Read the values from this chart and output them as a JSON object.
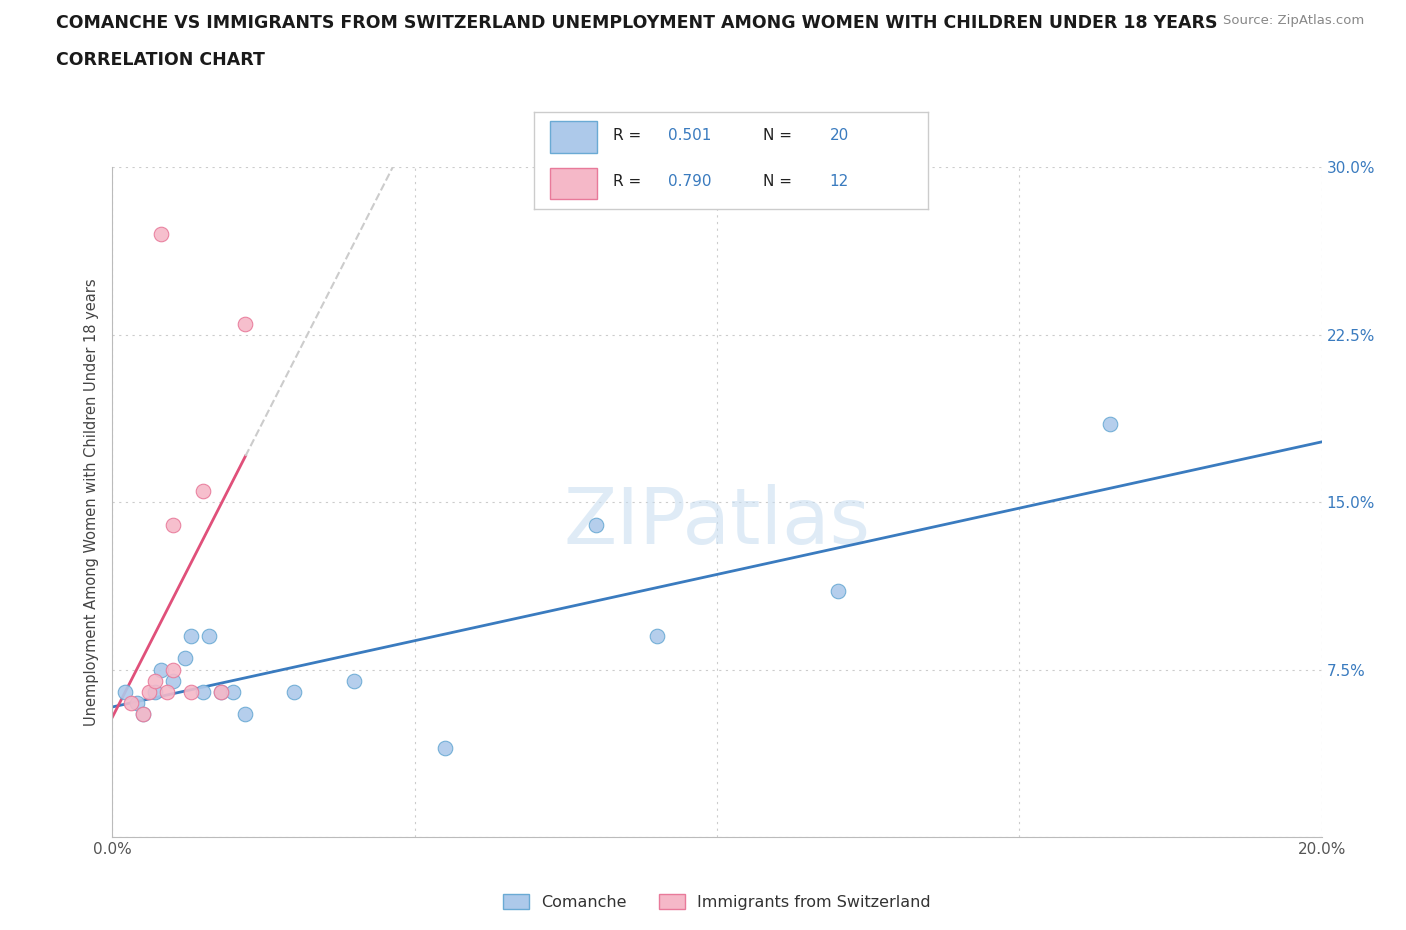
{
  "title_line1": "COMANCHE VS IMMIGRANTS FROM SWITZERLAND UNEMPLOYMENT AMONG WOMEN WITH CHILDREN UNDER 18 YEARS",
  "title_line2": "CORRELATION CHART",
  "source": "Source: ZipAtlas.com",
  "ylabel": "Unemployment Among Women with Children Under 18 years",
  "xlim": [
    0.0,
    0.2
  ],
  "ylim": [
    0.0,
    0.3
  ],
  "xticks": [
    0.0,
    0.05,
    0.1,
    0.15,
    0.2
  ],
  "yticks": [
    0.0,
    0.075,
    0.15,
    0.225,
    0.3
  ],
  "ytick_labels": [
    "",
    "7.5%",
    "15.0%",
    "22.5%",
    "30.0%"
  ],
  "xtick_labels": [
    "0.0%",
    "",
    "",
    "",
    "20.0%"
  ],
  "background_color": "#ffffff",
  "grid_color": "#cccccc",
  "watermark": "ZIPatlas",
  "comanche_color": "#adc9ea",
  "switzerland_color": "#f5b8c8",
  "comanche_edge_color": "#6aaad4",
  "switzerland_edge_color": "#e87a9a",
  "comanche_line_color": "#3a7bbf",
  "switzerland_line_color": "#e0507a",
  "switzerland_line_dashed_color": "#cccccc",
  "R_comanche": "0.501",
  "N_comanche": "20",
  "R_switzerland": "0.790",
  "N_switzerland": "12",
  "legend_label_comanche": "Comanche",
  "legend_label_switzerland": "Immigrants from Switzerland",
  "comanche_x": [
    0.002,
    0.004,
    0.005,
    0.007,
    0.008,
    0.01,
    0.012,
    0.013,
    0.015,
    0.016,
    0.018,
    0.02,
    0.022,
    0.03,
    0.04,
    0.055,
    0.08,
    0.09,
    0.12,
    0.165
  ],
  "comanche_y": [
    0.065,
    0.06,
    0.055,
    0.065,
    0.075,
    0.07,
    0.08,
    0.09,
    0.065,
    0.09,
    0.065,
    0.065,
    0.055,
    0.065,
    0.07,
    0.04,
    0.14,
    0.09,
    0.11,
    0.185
  ],
  "switzerland_x": [
    0.003,
    0.005,
    0.006,
    0.007,
    0.008,
    0.009,
    0.01,
    0.01,
    0.013,
    0.015,
    0.018,
    0.022
  ],
  "switzerland_y": [
    0.06,
    0.055,
    0.065,
    0.07,
    0.27,
    0.065,
    0.075,
    0.14,
    0.065,
    0.155,
    0.065,
    0.23
  ]
}
